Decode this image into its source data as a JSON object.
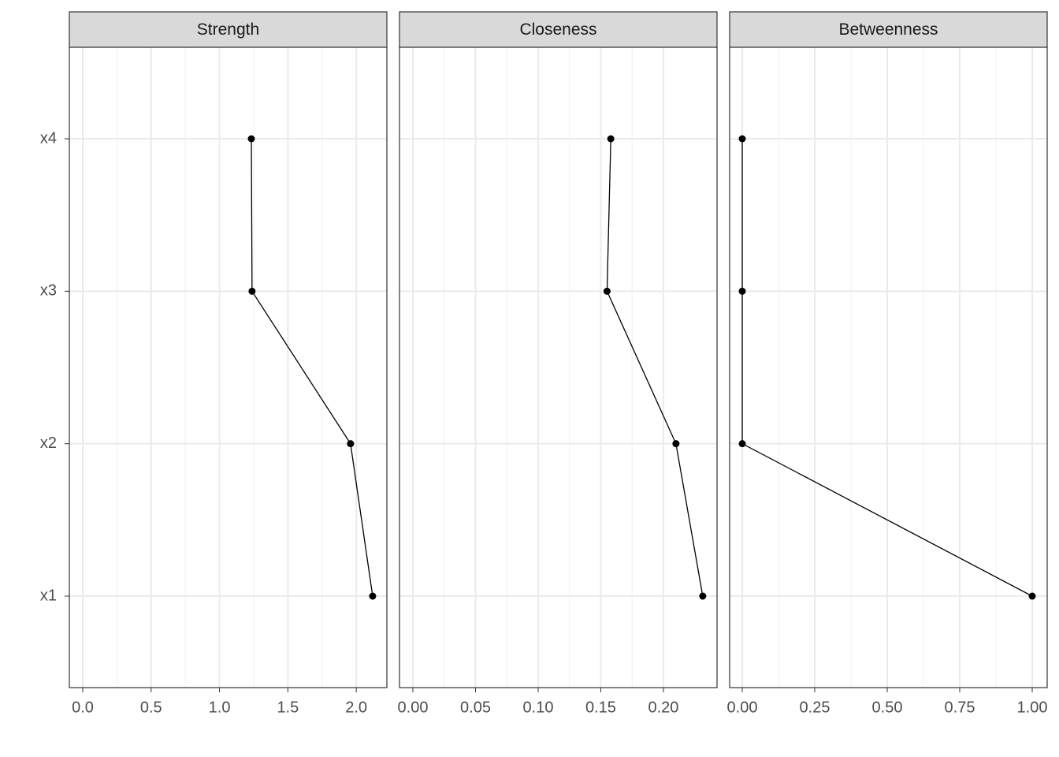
{
  "chart_data": {
    "type": "line",
    "orientation": "horizontal",
    "grid": true,
    "color": "#000000",
    "categories": [
      "x1",
      "x2",
      "x3",
      "x4"
    ],
    "facets": [
      {
        "title": "Strength",
        "values": [
          2.12,
          1.958,
          1.238,
          1.233
        ],
        "xlim": [
          -0.098,
          2.224
        ],
        "xticks": [
          {
            "value": 0,
            "label": "0.0"
          },
          0.5,
          {
            "value": 1,
            "label": "1.0"
          },
          1.5,
          {
            "value": 2,
            "label": "2.0"
          }
        ]
      },
      {
        "title": "Closeness",
        "values": [
          0.2314,
          0.21,
          0.155,
          0.158
        ],
        "xlim": [
          -0.0107,
          0.2428
        ],
        "xticks": [
          {
            "value": 0,
            "label": "0.00"
          },
          0.05,
          {
            "value": 0.1,
            "label": "0.10"
          },
          0.15,
          {
            "value": 0.2,
            "label": "0.20"
          }
        ]
      },
      {
        "title": "Betweenness",
        "values": [
          1,
          0,
          0,
          0
        ],
        "xlim": [
          -0.0435,
          1.0516
        ],
        "xticks": [
          {
            "value": 0,
            "label": "0.00"
          },
          0.25,
          {
            "value": 0.5,
            "label": "0.50"
          },
          0.75,
          {
            "value": 1,
            "label": "1.00"
          }
        ]
      }
    ]
  }
}
